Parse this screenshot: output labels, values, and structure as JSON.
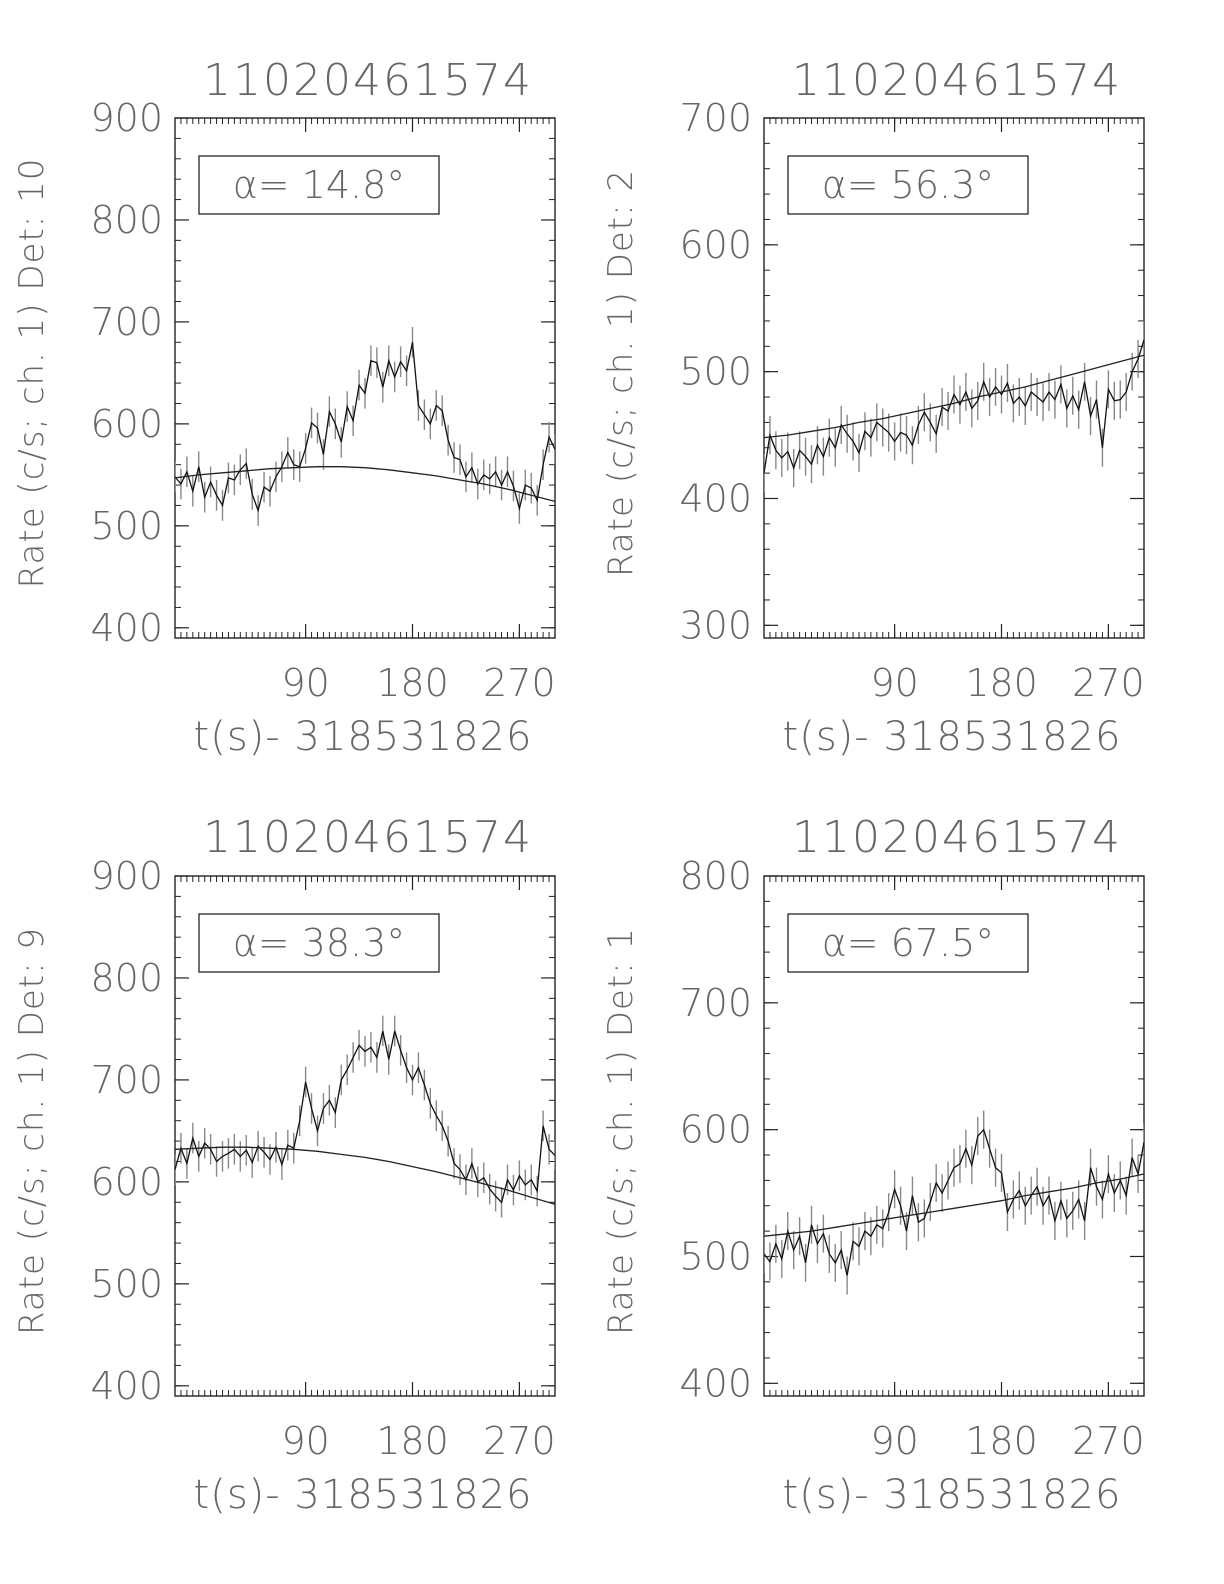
{
  "figure": {
    "panel_title": "11020461574",
    "xlabel": "t(s)- 318531826",
    "annotation_prefix": "α= "
  },
  "chart_data": [
    {
      "type": "line",
      "title": "11020461574",
      "xlabel": "t(s)- 318531826",
      "ylabel": "Rate (c/s; ch. 1) Det: 10",
      "annotation": "α= 14.8°",
      "xlim": [
        -20,
        300
      ],
      "ylim": [
        390,
        900
      ],
      "xticks": [
        90,
        180,
        270
      ],
      "yticks": [
        400,
        500,
        600,
        700,
        800,
        900
      ],
      "series": [
        {
          "x": [
            -20,
            -15,
            -10,
            -5,
            0,
            5,
            10,
            15,
            20,
            25,
            30,
            35,
            40,
            45,
            50,
            55,
            60,
            65,
            70,
            75,
            80,
            85,
            90,
            95,
            100,
            105,
            110,
            115,
            120,
            125,
            130,
            135,
            140,
            145,
            150,
            155,
            160,
            165,
            170,
            175,
            180,
            185,
            190,
            195,
            200,
            205,
            210,
            215,
            220,
            225,
            230,
            235,
            240,
            245,
            250,
            255,
            260,
            265,
            270,
            275,
            280,
            285,
            290,
            295,
            300
          ],
          "values": [
            548,
            541,
            553,
            534,
            558,
            528,
            543,
            530,
            520,
            547,
            545,
            555,
            561,
            531,
            515,
            538,
            534,
            548,
            558,
            572,
            560,
            558,
            576,
            601,
            596,
            570,
            612,
            600,
            582,
            617,
            603,
            638,
            630,
            662,
            660,
            636,
            662,
            646,
            661,
            652,
            680,
            618,
            609,
            600,
            618,
            613,
            584,
            567,
            565,
            548,
            557,
            541,
            550,
            546,
            553,
            540,
            553,
            539,
            517,
            540,
            537,
            525,
            560,
            587,
            575
          ],
          "error": 15
        },
        {
          "x": [
            -20,
            0,
            20,
            40,
            60,
            80,
            100,
            120,
            140,
            160,
            180,
            200,
            220,
            240,
            260,
            280,
            300
          ],
          "values": [
            547,
            550,
            552,
            554,
            556,
            557,
            558,
            558,
            557,
            555,
            552,
            549,
            545,
            541,
            536,
            530,
            524
          ]
        }
      ]
    },
    {
      "type": "line",
      "title": "11020461574",
      "xlabel": "t(s)- 318531826",
      "ylabel": "Rate (c/s; ch. 1) Det: 2",
      "annotation": "α= 56.3°",
      "xlim": [
        -20,
        300
      ],
      "ylim": [
        290,
        700
      ],
      "xticks": [
        90,
        180,
        270
      ],
      "yticks": [
        300,
        400,
        500,
        600,
        700
      ],
      "series": [
        {
          "x": [
            -20,
            -15,
            -10,
            -5,
            0,
            5,
            10,
            15,
            20,
            25,
            30,
            35,
            40,
            45,
            50,
            55,
            60,
            65,
            70,
            75,
            80,
            85,
            90,
            95,
            100,
            105,
            110,
            115,
            120,
            125,
            130,
            135,
            140,
            145,
            150,
            155,
            160,
            165,
            170,
            175,
            180,
            185,
            190,
            195,
            200,
            205,
            210,
            215,
            220,
            225,
            230,
            235,
            240,
            245,
            250,
            255,
            260,
            265,
            270,
            275,
            280,
            285,
            290,
            295,
            300
          ],
          "values": [
            420,
            450,
            438,
            432,
            437,
            424,
            438,
            433,
            427,
            442,
            433,
            448,
            440,
            458,
            451,
            445,
            436,
            453,
            448,
            460,
            456,
            452,
            445,
            452,
            450,
            442,
            458,
            468,
            460,
            451,
            472,
            469,
            482,
            474,
            484,
            471,
            477,
            492,
            480,
            488,
            482,
            491,
            475,
            480,
            473,
            484,
            480,
            476,
            484,
            478,
            490,
            471,
            481,
            470,
            492,
            465,
            478,
            440,
            486,
            477,
            478,
            484,
            500,
            510,
            525
          ]
        },
        {
          "x": [
            -20,
            0,
            20,
            40,
            60,
            80,
            100,
            120,
            140,
            160,
            180,
            200,
            220,
            240,
            260,
            280,
            300
          ],
          "values": [
            448,
            450,
            453,
            456,
            460,
            463,
            467,
            471,
            475,
            480,
            484,
            488,
            493,
            498,
            503,
            508,
            513
          ]
        }
      ]
    },
    {
      "type": "line",
      "title": "11020461574",
      "xlabel": "t(s)- 318531826",
      "ylabel": "Rate (c/s; ch. 1) Det: 9",
      "annotation": "α= 38.3°",
      "xlim": [
        -20,
        300
      ],
      "ylim": [
        390,
        900
      ],
      "xticks": [
        90,
        180,
        270
      ],
      "yticks": [
        400,
        500,
        600,
        700,
        800,
        900
      ],
      "series": [
        {
          "x": [
            -20,
            -15,
            -10,
            -5,
            0,
            5,
            10,
            15,
            20,
            25,
            30,
            35,
            40,
            45,
            50,
            55,
            60,
            65,
            70,
            75,
            80,
            85,
            90,
            95,
            100,
            105,
            110,
            115,
            120,
            125,
            130,
            135,
            140,
            145,
            150,
            155,
            160,
            165,
            170,
            175,
            180,
            185,
            190,
            195,
            200,
            205,
            210,
            215,
            220,
            225,
            230,
            235,
            240,
            245,
            250,
            255,
            260,
            265,
            270,
            275,
            280,
            285,
            290,
            295,
            300
          ],
          "values": [
            612,
            633,
            618,
            643,
            625,
            638,
            632,
            620,
            625,
            628,
            632,
            625,
            631,
            619,
            635,
            629,
            622,
            634,
            617,
            636,
            633,
            660,
            698,
            672,
            650,
            672,
            680,
            668,
            700,
            710,
            722,
            734,
            728,
            732,
            722,
            748,
            720,
            748,
            729,
            712,
            700,
            712,
            695,
            677,
            665,
            655,
            640,
            618,
            612,
            602,
            618,
            600,
            604,
            593,
            586,
            580,
            602,
            592,
            606,
            597,
            602,
            591,
            655,
            632,
            626
          ]
        },
        {
          "x": [
            -20,
            0,
            20,
            40,
            60,
            80,
            100,
            120,
            140,
            160,
            180,
            200,
            220,
            240,
            260,
            280,
            300
          ],
          "values": [
            632,
            633,
            634,
            634,
            633,
            632,
            630,
            627,
            624,
            620,
            615,
            610,
            604,
            598,
            592,
            585,
            578
          ]
        }
      ]
    },
    {
      "type": "line",
      "title": "11020461574",
      "xlabel": "t(s)- 318531826",
      "ylabel": "Rate (c/s; ch. 1) Det: 1",
      "annotation": "α= 67.5°",
      "xlim": [
        -20,
        300
      ],
      "ylim": [
        390,
        800
      ],
      "xticks": [
        90,
        180,
        270
      ],
      "yticks": [
        400,
        500,
        600,
        700,
        800
      ],
      "series": [
        {
          "x": [
            -20,
            -15,
            -10,
            -5,
            0,
            5,
            10,
            15,
            20,
            25,
            30,
            35,
            40,
            45,
            50,
            55,
            60,
            65,
            70,
            75,
            80,
            85,
            90,
            95,
            100,
            105,
            110,
            115,
            120,
            125,
            130,
            135,
            140,
            145,
            150,
            155,
            160,
            165,
            170,
            175,
            180,
            185,
            190,
            195,
            200,
            205,
            210,
            215,
            220,
            225,
            230,
            235,
            240,
            245,
            250,
            255,
            260,
            265,
            270,
            275,
            280,
            285,
            290,
            295,
            300
          ],
          "values": [
            502,
            496,
            510,
            498,
            520,
            505,
            516,
            495,
            525,
            510,
            518,
            502,
            495,
            505,
            485,
            512,
            508,
            520,
            516,
            525,
            522,
            535,
            553,
            540,
            520,
            548,
            527,
            530,
            543,
            558,
            550,
            560,
            570,
            573,
            585,
            572,
            595,
            600,
            585,
            570,
            566,
            535,
            545,
            552,
            540,
            548,
            555,
            540,
            548,
            528,
            544,
            530,
            536,
            545,
            528,
            570,
            555,
            545,
            565,
            550,
            560,
            548,
            578,
            565,
            590
          ]
        },
        {
          "x": [
            -20,
            0,
            20,
            40,
            60,
            80,
            100,
            120,
            140,
            160,
            180,
            200,
            220,
            240,
            260,
            280,
            300
          ],
          "values": [
            516,
            518,
            520,
            523,
            526,
            529,
            532,
            535,
            538,
            541,
            544,
            548,
            551,
            554,
            558,
            561,
            565
          ]
        }
      ]
    }
  ]
}
